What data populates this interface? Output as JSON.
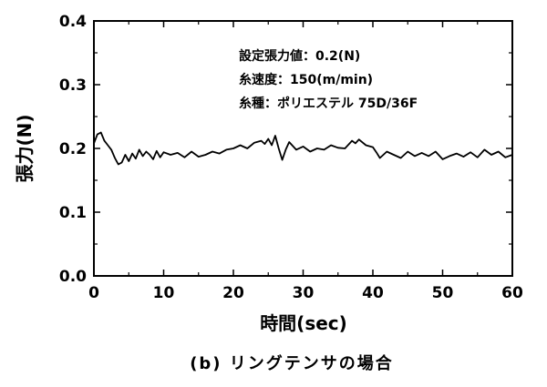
{
  "chart_data": {
    "type": "line",
    "xlabel": "時間(sec)",
    "ylabel": "張力(N)",
    "xlim": [
      0,
      60
    ],
    "ylim": [
      0.0,
      0.4
    ],
    "x_ticks": [
      "0",
      "10",
      "20",
      "30",
      "40",
      "50",
      "60"
    ],
    "y_ticks": [
      "0.0",
      "0.1",
      "0.2",
      "0.3",
      "0.4"
    ],
    "grid": false,
    "annotations": [
      "設定張力値：0.2(N)",
      "糸速度：150(m/min)",
      "糸種：ポリエステル 75D/36F"
    ],
    "caption": "(b) リングテンサの場合",
    "series": [
      {
        "x": [
          0,
          0.5,
          1,
          1.5,
          2,
          2.5,
          3,
          3.5,
          4,
          4.5,
          5,
          5.5,
          6,
          6.5,
          7,
          7.5,
          8,
          8.5,
          9,
          9.5,
          10,
          11,
          12,
          13,
          14,
          15,
          16,
          17,
          18,
          19,
          20,
          21,
          22,
          23,
          24,
          24.5,
          25,
          25.5,
          26,
          26.5,
          27,
          27.5,
          28,
          29,
          30,
          31,
          32,
          33,
          34,
          35,
          36,
          37,
          37.5,
          38,
          39,
          40,
          40.5,
          41,
          41.5,
          42,
          43,
          44,
          45,
          46,
          47,
          48,
          49,
          50,
          51,
          52,
          53,
          54,
          55,
          56,
          57,
          58,
          59,
          60
        ],
        "values": [
          0.208,
          0.222,
          0.225,
          0.212,
          0.205,
          0.198,
          0.185,
          0.175,
          0.178,
          0.19,
          0.18,
          0.192,
          0.184,
          0.198,
          0.188,
          0.195,
          0.19,
          0.183,
          0.196,
          0.186,
          0.194,
          0.19,
          0.193,
          0.186,
          0.195,
          0.187,
          0.19,
          0.195,
          0.192,
          0.198,
          0.2,
          0.205,
          0.2,
          0.209,
          0.212,
          0.207,
          0.215,
          0.205,
          0.22,
          0.2,
          0.182,
          0.198,
          0.21,
          0.198,
          0.203,
          0.195,
          0.2,
          0.198,
          0.205,
          0.201,
          0.2,
          0.212,
          0.208,
          0.214,
          0.205,
          0.202,
          0.194,
          0.185,
          0.19,
          0.195,
          0.19,
          0.185,
          0.195,
          0.188,
          0.193,
          0.188,
          0.195,
          0.183,
          0.188,
          0.192,
          0.187,
          0.194,
          0.186,
          0.198,
          0.19,
          0.195,
          0.186,
          0.19
        ]
      }
    ]
  }
}
